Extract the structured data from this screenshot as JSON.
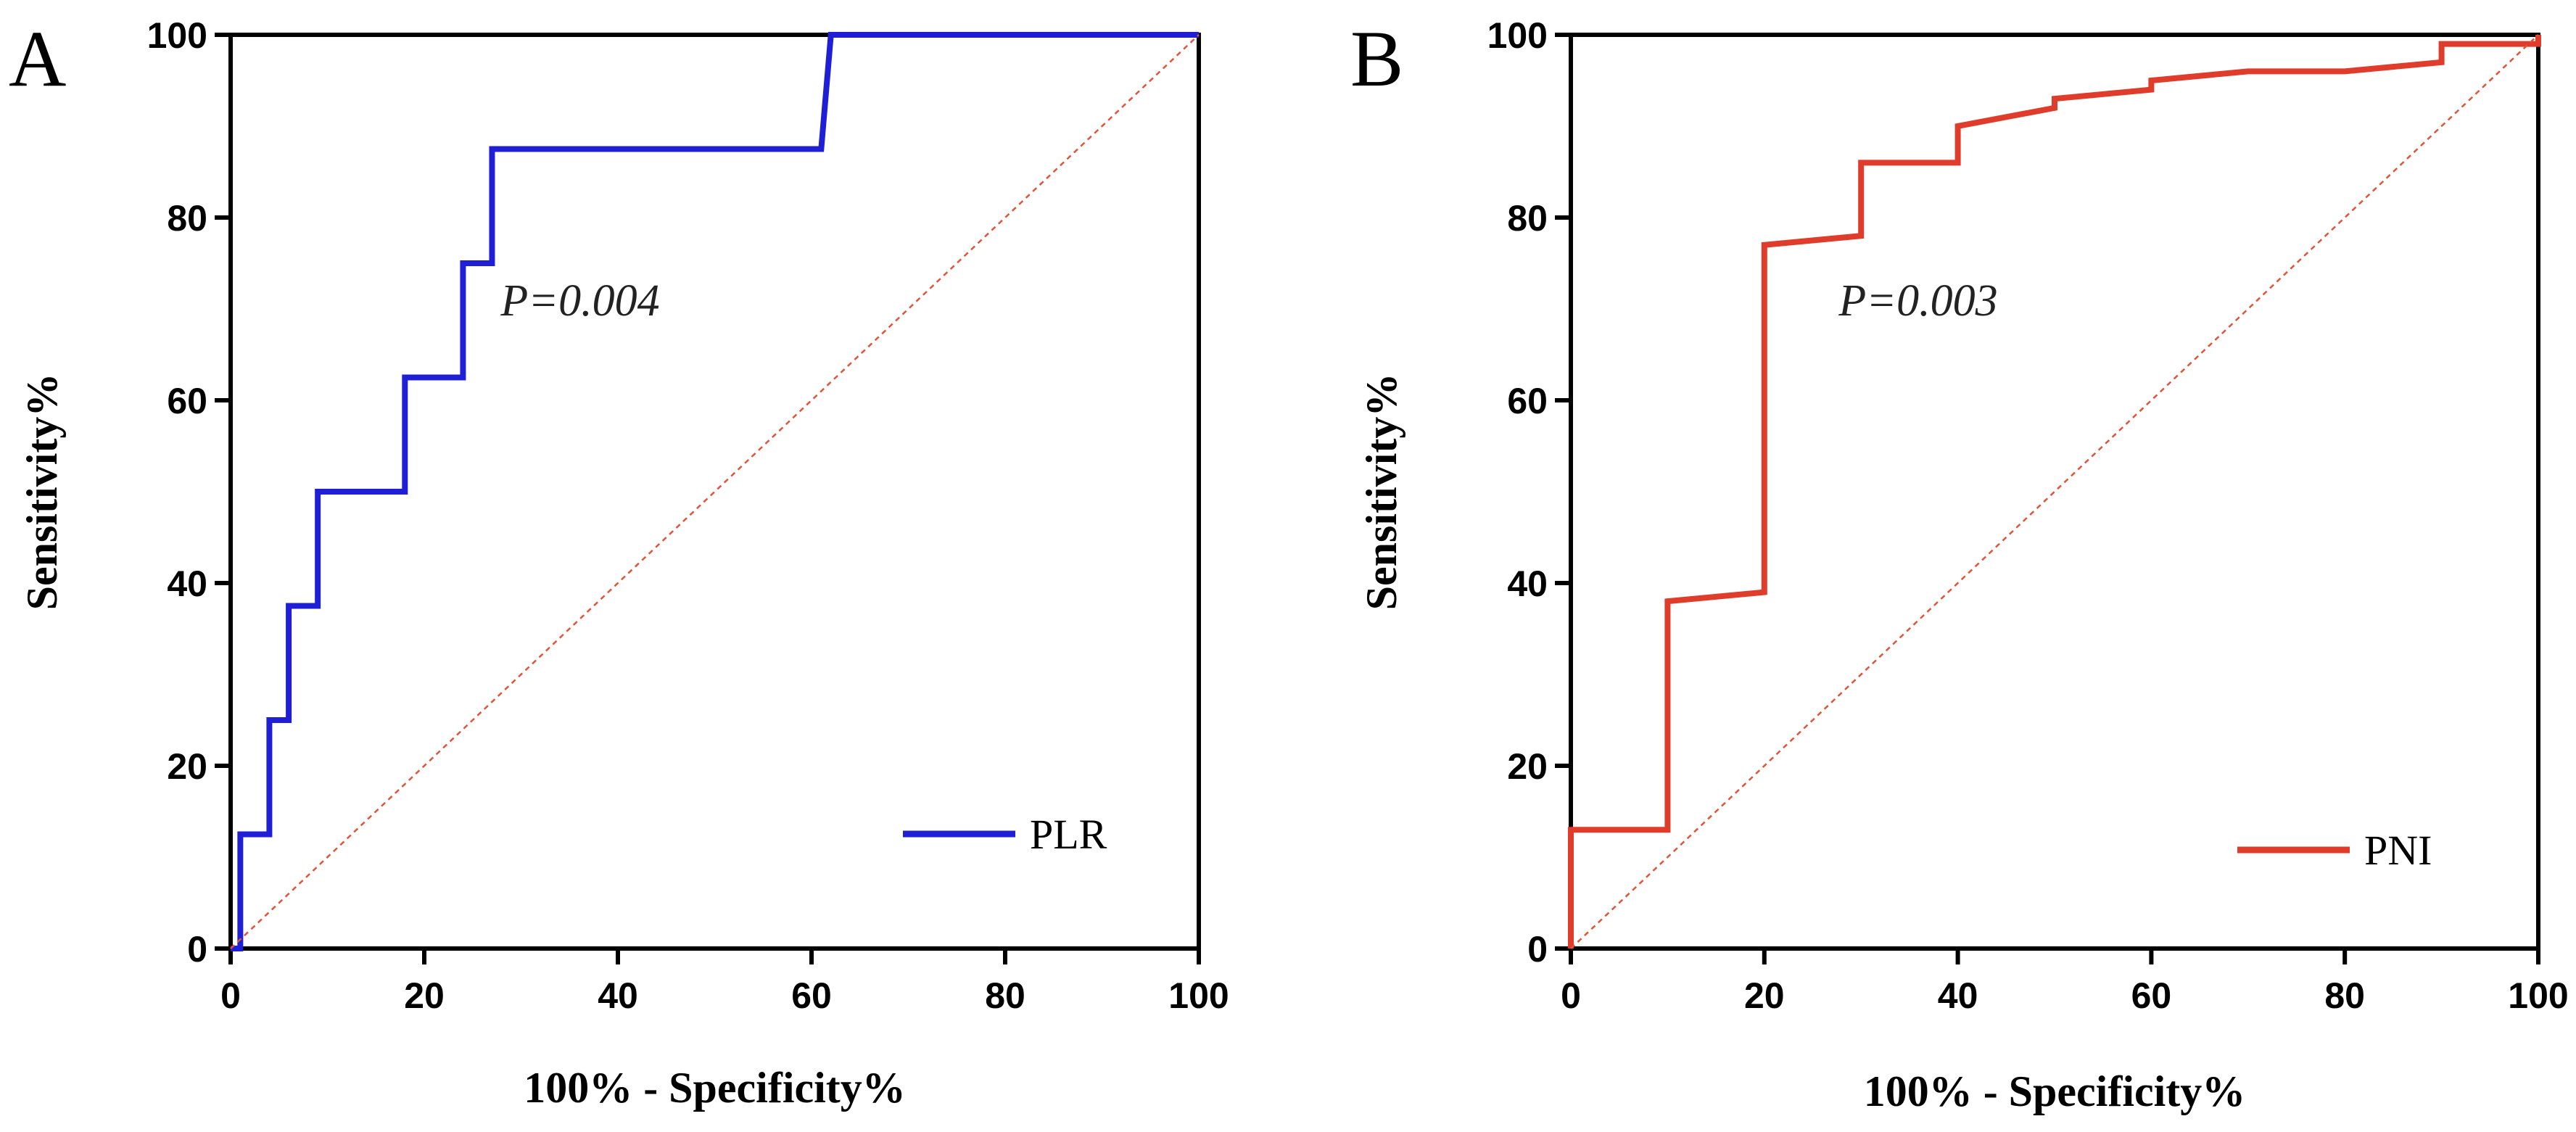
{
  "chart_data": [
    {
      "type": "line",
      "panel_label": "A",
      "xlabel": "100% - Specificity%",
      "ylabel": "Sensitivity%",
      "xlim": [
        0,
        100
      ],
      "ylim": [
        0,
        100
      ],
      "xticks": [
        "0",
        "20",
        "40",
        "60",
        "80",
        "100"
      ],
      "yticks": [
        "0",
        "20",
        "40",
        "60",
        "80",
        "100"
      ],
      "annotation": "P=0.004",
      "legend_position": "bottom-right",
      "series": [
        {
          "name": "PLR",
          "color": "#1f1fd6",
          "x": [
            0,
            1,
            1,
            4,
            4,
            6,
            6,
            9,
            9,
            18,
            18,
            24,
            24,
            27,
            27,
            29.5,
            29.5,
            61,
            62,
            100
          ],
          "y": [
            0,
            0,
            12.5,
            12.5,
            25,
            25,
            37.5,
            37.5,
            50,
            50,
            62.5,
            62.5,
            75,
            75,
            87.5,
            87.5,
            87.5,
            87.5,
            100,
            100
          ]
        },
        {
          "name": "reference",
          "color": "#e0553a",
          "dashed": true,
          "x": [
            0,
            100
          ],
          "y": [
            0,
            100
          ]
        }
      ]
    },
    {
      "type": "line",
      "panel_label": "B",
      "xlabel": "100% - Specificity%",
      "ylabel": "Sensitivity%",
      "xlim": [
        0,
        100
      ],
      "ylim": [
        0,
        100
      ],
      "xticks": [
        "0",
        "20",
        "40",
        "60",
        "80",
        "100"
      ],
      "yticks": [
        "0",
        "20",
        "40",
        "60",
        "80",
        "100"
      ],
      "annotation": "P=0.003",
      "legend_position": "bottom-right",
      "series": [
        {
          "name": "PNI",
          "color": "#e03c2c",
          "x": [
            0,
            0,
            10,
            10,
            20,
            20,
            30,
            30,
            40,
            40,
            50,
            50,
            60,
            60,
            70,
            80,
            90,
            90,
            100,
            100
          ],
          "y": [
            0,
            13,
            13,
            38,
            39,
            77,
            78,
            86,
            86,
            90,
            92,
            93,
            94,
            95,
            96,
            96,
            97,
            99,
            99,
            100
          ]
        },
        {
          "name": "reference",
          "color": "#e0553a",
          "dashed": true,
          "x": [
            0,
            100
          ],
          "y": [
            0,
            100
          ]
        }
      ]
    }
  ]
}
